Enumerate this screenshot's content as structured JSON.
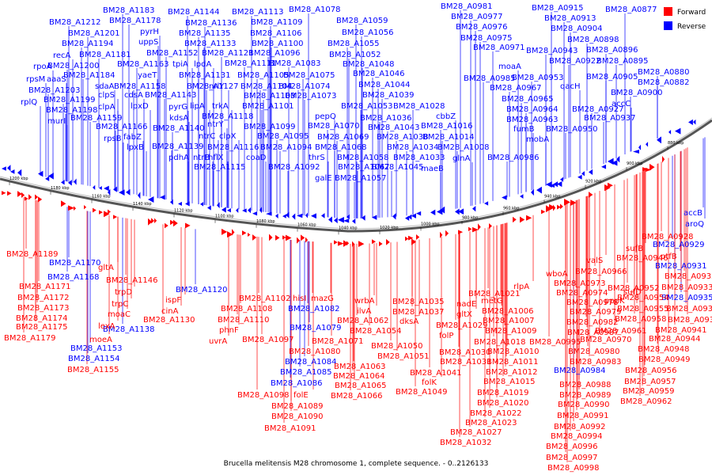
{
  "caption": "Brucella melitensis M28 chromosome 1, complete sequence. - 0..2126133",
  "legend": [
    {
      "label": "Forward",
      "color": "#ff0000"
    },
    {
      "label": "Reverse",
      "color": "#0000ff"
    }
  ],
  "ticks": [
    "1200 kbp",
    "1180 kbp",
    "1160 kbp",
    "1140 kbp",
    "1120 kbp",
    "1100 kbp",
    "1080 kbp",
    "1060 kbp",
    "1040 kbp",
    "1020 kbp",
    "1000 kbp",
    "980 kbp",
    "960 kbp",
    "940 kbp",
    "920 kbp",
    "900 kbp",
    "880 kbp"
  ],
  "reverse_labels": [
    [
      "BM28_A1183",
      130,
      12
    ],
    [
      "BM28_A1144",
      212,
      14
    ],
    [
      "BM28_A1113",
      293,
      14
    ],
    [
      "BM28_A1078",
      365,
      11
    ],
    [
      "BM28_A0981",
      557,
      7
    ],
    [
      "BM28_A0915",
      672,
      9
    ],
    [
      "BM28_A0877",
      765,
      11
    ],
    [
      "BM28_A1212",
      62,
      27
    ],
    [
      "BM28_A1178",
      138,
      25
    ],
    [
      "BM28_A1136",
      234,
      28
    ],
    [
      "BM28_A1109",
      317,
      27
    ],
    [
      "BM28_A1059",
      425,
      25
    ],
    [
      "BM28_A0977",
      570,
      20
    ],
    [
      "BM28_A0913",
      688,
      22
    ],
    [
      "BM28_A1201",
      86,
      41
    ],
    [
      "pyrH",
      177,
      39
    ],
    [
      "BM28_A1135",
      226,
      41
    ],
    [
      "BM28_A1106",
      316,
      41
    ],
    [
      "BM28_A1056",
      432,
      40
    ],
    [
      "BM28_A0976",
      576,
      33
    ],
    [
      "BM28_A0904",
      696,
      35
    ],
    [
      "BM28_A1194",
      78,
      54
    ],
    [
      "uppS",
      175,
      52
    ],
    [
      "BM28_A1133",
      233,
      54
    ],
    [
      "BM28_A1100",
      318,
      54
    ],
    [
      "BM28_A1055",
      414,
      54
    ],
    [
      "BM28_A0975",
      582,
      47
    ],
    [
      "BM28_A0898",
      717,
      49
    ],
    [
      "recA",
      67,
      69
    ],
    [
      "BM28_A1181",
      100,
      68
    ],
    [
      "BM28_A1152",
      185,
      66
    ],
    [
      "BM28_A1121",
      255,
      66
    ],
    [
      "BM28_A1096",
      314,
      66
    ],
    [
      "BM28_A1052",
      416,
      68
    ],
    [
      "BM28_A0971",
      598,
      59
    ],
    [
      "BM28_A0943",
      665,
      63
    ],
    [
      "BM28_A0896",
      741,
      62
    ],
    [
      "rpoA",
      42,
      83
    ],
    [
      "BM28_A1200",
      60,
      82
    ],
    [
      "BM28_A1163",
      148,
      80
    ],
    [
      "tpiA",
      218,
      80
    ],
    [
      "lpdA",
      245,
      80
    ],
    [
      "BM28_A1111",
      284,
      79
    ],
    [
      "BM28_A1083",
      340,
      79
    ],
    [
      "BM28_A1048",
      433,
      80
    ],
    [
      "moaA",
      630,
      83
    ],
    [
      "BM28_A0922",
      694,
      76
    ],
    [
      "BM28_A0895",
      754,
      76
    ],
    [
      "rpsM",
      33,
      99
    ],
    [
      "aaaS",
      59,
      99
    ],
    [
      "BM28_A1184",
      80,
      94
    ],
    [
      "yaeT",
      174,
      94
    ],
    [
      "BM28_A1131",
      226,
      94
    ],
    [
      "BM28_A1105",
      300,
      94
    ],
    [
      "BM28_A1075",
      358,
      94
    ],
    [
      "BM28_A1046",
      446,
      92
    ],
    [
      "BM28_A0985",
      586,
      98
    ],
    [
      "BM28_A0953",
      647,
      97
    ],
    [
      "BM28_A0905",
      741,
      96
    ],
    [
      "BM28_A0880",
      806,
      90
    ],
    [
      "sdaA",
      120,
      108
    ],
    [
      "BM28_A1158",
      144,
      108
    ],
    [
      "BM28_A1127",
      236,
      108
    ],
    [
      "nrlY",
      264,
      108
    ],
    [
      "BM28_A1104",
      304,
      108
    ],
    [
      "BM28_A1074",
      352,
      108
    ],
    [
      "BM28_A1044",
      453,
      106
    ],
    [
      "BM28_A0967",
      619,
      110
    ],
    [
      "qacH",
      708,
      108
    ],
    [
      "BM28_A0882",
      806,
      103
    ],
    [
      "rplQ",
      26,
      128
    ],
    [
      "BM28_A1203",
      36,
      113
    ],
    [
      "BM28_A1199",
      55,
      125
    ],
    [
      "clpS",
      124,
      119
    ],
    [
      "cdsA",
      157,
      119
    ],
    [
      "BM28_A1143",
      183,
      119
    ],
    [
      "BM28_A1103",
      308,
      120
    ],
    [
      "BM28_A1073",
      360,
      120
    ],
    [
      "BM28_A1039",
      458,
      119
    ],
    [
      "BM28_A0965",
      634,
      124
    ],
    [
      "BM28_A0927",
      723,
      137
    ],
    [
      "BM28_A0900",
      772,
      116
    ],
    [
      "BM28_A1198",
      58,
      138
    ],
    [
      "clpA",
      124,
      134
    ],
    [
      "lpxD",
      165,
      133
    ],
    [
      "pyrG",
      213,
      134
    ],
    [
      "lipA",
      240,
      133
    ],
    [
      "trkA",
      268,
      133
    ],
    [
      "BM28_A1101",
      306,
      133
    ],
    [
      "BM28_A1053",
      431,
      133
    ],
    [
      "BM28_A1028",
      497,
      133
    ],
    [
      "BM28_A0964",
      640,
      137
    ],
    [
      "accC",
      773,
      130
    ],
    [
      "murI",
      60,
      152
    ],
    [
      "BM28_A1159",
      89,
      148
    ],
    [
      "kdsA",
      214,
      148
    ],
    [
      "BM28_A1118",
      255,
      146
    ],
    [
      "pepQ",
      398,
      146
    ],
    [
      "BM28_A1036",
      455,
      148
    ],
    [
      "cbbZ",
      551,
      146
    ],
    [
      "BM28_A0963",
      640,
      150
    ],
    [
      "BM28_A0937",
      738,
      148
    ],
    [
      "BM28_A1166",
      121,
      159
    ],
    [
      "BM28_A1140",
      193,
      161
    ],
    [
      "ntrY",
      262,
      156
    ],
    [
      "BM28_A1099",
      308,
      159
    ],
    [
      "BM28_A1070",
      389,
      158
    ],
    [
      "BM28_A1043",
      465,
      160
    ],
    [
      "BM28_A1016",
      532,
      158
    ],
    [
      "fumB",
      649,
      162
    ],
    [
      "BM28_A0950",
      690,
      162
    ],
    [
      "rpsB",
      131,
      174
    ],
    [
      "fabZ",
      156,
      172
    ],
    [
      "ntrC",
      251,
      171
    ],
    [
      "clpX",
      277,
      171
    ],
    [
      "BM28_A1095",
      325,
      171
    ],
    [
      "BM28_A1069",
      401,
      172
    ],
    [
      "BM28_A1038",
      476,
      172
    ],
    [
      "BM28_A1014",
      534,
      172
    ],
    [
      "mobA",
      665,
      175
    ],
    [
      "lpxB",
      160,
      185
    ],
    [
      "BM28_A1139",
      192,
      184
    ],
    [
      "ntrB",
      244,
      198
    ],
    [
      "hflX",
      263,
      198
    ],
    [
      "BM28_A1116",
      262,
      185
    ],
    [
      "BM28_A1094",
      329,
      185
    ],
    [
      "BM28_A1068",
      398,
      185
    ],
    [
      "BM28_A1034",
      489,
      185
    ],
    [
      "BM28_A1008",
      553,
      185
    ],
    [
      "pdhA",
      213,
      198
    ],
    [
      "BM28_A1115",
      245,
      210
    ],
    [
      "coaD",
      311,
      198
    ],
    [
      "thrS",
      390,
      198
    ],
    [
      "BM28_A1058",
      426,
      198
    ],
    [
      "BM28_A1033",
      497,
      198
    ],
    [
      "glnA",
      572,
      199
    ],
    [
      "BM28_A0986",
      616,
      198
    ],
    [
      "BM28_A1092",
      339,
      210
    ],
    [
      "BM28_A1067",
      427,
      210
    ],
    [
      "BM28_A1045",
      470,
      210
    ],
    [
      "maeB",
      532,
      212
    ],
    [
      "galE",
      398,
      224
    ],
    [
      "BM28_A1057",
      423,
      224
    ],
    [
      "BM28_A1170",
      62,
      331
    ],
    [
      "BM28_A1168",
      60,
      349
    ],
    [
      "BM28_A1120",
      222,
      365
    ],
    [
      "BM28_A1138",
      130,
      415
    ],
    [
      "BM28_A1153",
      89,
      439
    ],
    [
      "BM28_A1154",
      86,
      452
    ],
    [
      "BM28_A1082",
      364,
      389
    ],
    [
      "BM28_A1079",
      366,
      413
    ],
    [
      "BM28_A1084",
      360,
      456
    ],
    [
      "BM28_A1085",
      354,
      469
    ],
    [
      "BM28_A1086",
      342,
      483
    ],
    [
      "BM28_A0984",
      700,
      467
    ],
    [
      "accB",
      864,
      268
    ],
    [
      "aroQ",
      866,
      282
    ],
    [
      "BM28_A0929",
      825,
      308
    ],
    [
      "BM28_A0931",
      828,
      335
    ],
    [
      "BM28_A0935",
      836,
      375
    ]
  ],
  "forward_labels": [
    [
      "BM28_A1189",
      8,
      320
    ],
    [
      "gltA",
      124,
      337
    ],
    [
      "BM28_A1146",
      134,
      353
    ],
    [
      "trpD",
      145,
      368
    ],
    [
      "BM28_A1171",
      24,
      361
    ],
    [
      "BM28_A1172",
      22,
      375
    ],
    [
      "trpC",
      141,
      383
    ],
    [
      "BM28_A1173",
      22,
      388
    ],
    [
      "moaC",
      136,
      396
    ],
    [
      "BM28_A1174",
      20,
      401
    ],
    [
      "lexA",
      124,
      411
    ],
    [
      "BM28_A1175",
      20,
      412
    ],
    [
      "BM28_A1179",
      5,
      426
    ],
    [
      "moeA",
      113,
      428
    ],
    [
      "BM28_A1155",
      85,
      466
    ],
    [
      "ispF",
      209,
      378
    ],
    [
      "cinA",
      204,
      392
    ],
    [
      "BM28_A1130",
      181,
      403
    ],
    [
      "BM28_A1102",
      302,
      376
    ],
    [
      "BM28_A1108",
      279,
      389
    ],
    [
      "BM28_A1110",
      275,
      403
    ],
    [
      "phnF",
      277,
      416
    ],
    [
      "uvrA",
      264,
      430
    ],
    [
      "BM28_A1097",
      306,
      428
    ],
    [
      "hisI",
      370,
      376
    ],
    [
      "mazG",
      393,
      376
    ],
    [
      "BM28_A1080",
      365,
      443
    ],
    [
      "BM28_A1071",
      394,
      430
    ],
    [
      "BM28_A1063",
      422,
      462
    ],
    [
      "BM28_A1064",
      421,
      474
    ],
    [
      "BM28_A1065",
      423,
      486
    ],
    [
      "BM28_A1066",
      418,
      499
    ],
    [
      "BM28_A1098",
      300,
      498
    ],
    [
      "folE",
      371,
      498
    ],
    [
      "BM28_A1089",
      343,
      512
    ],
    [
      "BM28_A1090",
      343,
      525
    ],
    [
      "BM28_A1091",
      334,
      540
    ],
    [
      "wrbA",
      448,
      379
    ],
    [
      "ilvA",
      451,
      392
    ],
    [
      "BM28_A1062",
      426,
      404
    ],
    [
      "BM28_A1054",
      442,
      417
    ],
    [
      "BM28_A1050",
      469,
      436
    ],
    [
      "BM28_A1051",
      477,
      449
    ],
    [
      "BM28_A1035",
      496,
      380
    ],
    [
      "BM28_A1037",
      496,
      393
    ],
    [
      "dksA",
      505,
      405
    ],
    [
      "BM28_A1029",
      551,
      410
    ],
    [
      "folP",
      555,
      423
    ],
    [
      "BM28_A1030",
      555,
      444
    ],
    [
      "BM28_A1031",
      556,
      456
    ],
    [
      "BM28_A1041",
      518,
      470
    ],
    [
      "folK",
      533,
      482
    ],
    [
      "BM28_A1049",
      500,
      494
    ],
    [
      "BM28_A1021",
      592,
      370
    ],
    [
      "nadE",
      577,
      383
    ],
    [
      "gltX",
      577,
      396
    ],
    [
      "metG",
      608,
      379
    ],
    [
      "BM28_A1006",
      609,
      392
    ],
    [
      "BM28_A1007",
      610,
      404
    ],
    [
      "BM28_A1009",
      613,
      417
    ],
    [
      "BM28_A1018",
      599,
      431
    ],
    [
      "BM28_A1010",
      616,
      443
    ],
    [
      "BM28_A1011",
      615,
      456
    ],
    [
      "BM28_A1012",
      614,
      469
    ],
    [
      "BM28_A1015",
      611,
      481
    ],
    [
      "BM28_A1019",
      603,
      495
    ],
    [
      "BM28_A1020",
      603,
      508
    ],
    [
      "BM28_A1022",
      594,
      521
    ],
    [
      "BM28_A1023",
      588,
      533
    ],
    [
      "BM28_A1027",
      569,
      545
    ],
    [
      "BM28_A1032",
      556,
      558
    ],
    [
      "rlpA",
      649,
      361
    ],
    [
      "BM28_A0973",
      700,
      357
    ],
    [
      "BM28_A0974",
      703,
      369
    ],
    [
      "BM28_A0978",
      716,
      381
    ],
    [
      "BM28_A0979",
      720,
      393
    ],
    [
      "BM28_A0982",
      716,
      406
    ],
    [
      "BM28_A0987",
      717,
      419
    ],
    [
      "BM28_A0995",
      669,
      431
    ],
    [
      "BM28_A0980",
      718,
      443
    ],
    [
      "BM28_A0983",
      720,
      456
    ],
    [
      "BM28_A0988",
      707,
      485
    ],
    [
      "BM28_A0989",
      707,
      498
    ],
    [
      "BM28_A0990",
      705,
      510
    ],
    [
      "BM28_A0991",
      704,
      524
    ],
    [
      "BM28_A0992",
      700,
      538
    ],
    [
      "BM28_A0994",
      696,
      550
    ],
    [
      "BM28_A0996",
      690,
      563
    ],
    [
      "BM28_A0997",
      690,
      577
    ],
    [
      "BM28_A0998",
      692,
      590
    ],
    [
      "wboA",
      690,
      345
    ],
    [
      "BM28_A0966",
      727,
      342
    ],
    [
      "valS",
      741,
      328
    ],
    [
      "sufB",
      791,
      313
    ],
    [
      "sufD",
      788,
      368
    ],
    [
      "pppK",
      764,
      379
    ],
    [
      "BM28_A0946",
      779,
      325
    ],
    [
      "ptfB",
      835,
      323
    ],
    [
      "BM28_A0928",
      811,
      298
    ],
    [
      "BM28_A0932",
      840,
      348
    ],
    [
      "BM28_A0933",
      836,
      362
    ],
    [
      "BM28_A0952",
      768,
      363
    ],
    [
      "BM28_A0954",
      780,
      375
    ],
    [
      "BM28_A0955",
      780,
      389
    ],
    [
      "BM28_A0938",
      842,
      389
    ],
    [
      "BM28_A0958",
      777,
      402
    ],
    [
      "BM28_A0939",
      844,
      403
    ],
    [
      "BM28_A0961",
      752,
      417
    ],
    [
      "BM28_A0941",
      828,
      416
    ],
    [
      "BM28_A0970",
      733,
      428
    ],
    [
      "BM28_A0944",
      820,
      427
    ],
    [
      "BM28_A0948",
      806,
      440
    ],
    [
      "BM28_A0949",
      807,
      453
    ],
    [
      "BM28_A0956",
      790,
      467
    ],
    [
      "BM28_A0957",
      789,
      481
    ],
    [
      "BM28_A0959",
      787,
      493
    ],
    [
      "BM28_A0962",
      784,
      506
    ]
  ]
}
